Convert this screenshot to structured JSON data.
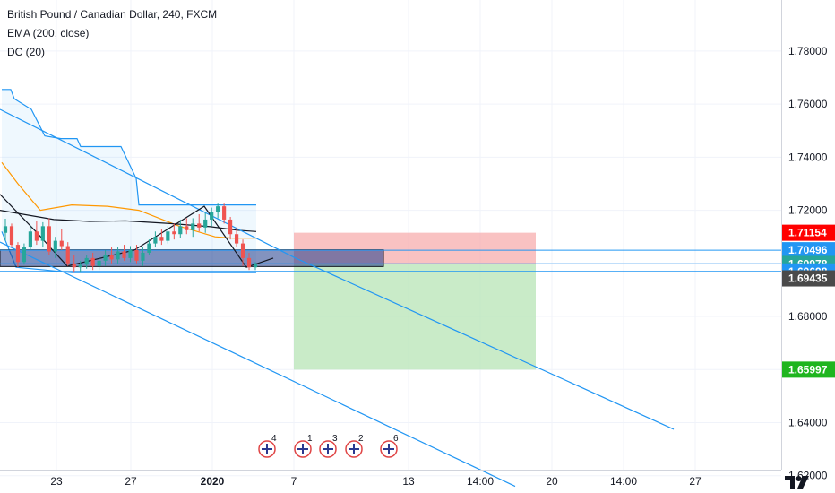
{
  "legend": {
    "title": "British Pound / Canadian Dollar, 240, FXCM",
    "ema": "EMA (200, close)",
    "dc": "DC (20)"
  },
  "colors": {
    "up": "#26a69a",
    "down": "#ef5350",
    "channel": "#2196f3",
    "ema": "#131722",
    "dc_upper": "#2196f3",
    "dc_lower": "#2196f3",
    "dc_basis": "#ff9800",
    "zone": "#1e3a8a",
    "stop_area": "#f7a8a8",
    "target_area": "#b7e4b5"
  },
  "chart_data": {
    "type": "candlestick",
    "symbol": "GBPCAD",
    "timeframe": "240",
    "ylim": [
      1.6135,
      1.7992
    ],
    "y_ticks": [
      1.62,
      1.64,
      1.66,
      1.68,
      1.7,
      1.72,
      1.74,
      1.76,
      1.78
    ],
    "y_tick_labels": [
      "1.62000",
      "1.64000",
      "1.66000",
      "1.68000",
      "1.70000",
      "1.72000",
      "1.74000",
      "1.76000",
      "1.78000"
    ],
    "x_tick_labels": [
      "23",
      "27",
      "2020",
      "7",
      "13",
      "14:00",
      "20",
      "14:00",
      "27"
    ],
    "price_badges": [
      {
        "label": "1.71154",
        "value": 1.71154,
        "color": "#ff0000"
      },
      {
        "label": "1.70496",
        "value": 1.70496,
        "color": "#2196f3"
      },
      {
        "label": "1.69986",
        "value": 1.69986,
        "color": "#2196f3"
      },
      {
        "label": "1.69978",
        "value": 1.69978,
        "color": "#26a69a"
      },
      {
        "label": "1.69698",
        "value": 1.69698,
        "color": "#2196f3"
      },
      {
        "label": "1.69435",
        "value": 1.69435,
        "color": "#4a4a4a"
      },
      {
        "label": "1.65997",
        "value": 1.65997,
        "color": "#1fb51f"
      }
    ],
    "candles": [
      [
        1.7115,
        1.7168,
        1.7085,
        1.714
      ],
      [
        1.714,
        1.715,
        1.706,
        1.707
      ],
      [
        1.707,
        1.708,
        1.6985,
        1.7005
      ],
      [
        1.7005,
        1.7075,
        1.6995,
        1.706
      ],
      [
        1.706,
        1.714,
        1.705,
        1.712
      ],
      [
        1.712,
        1.716,
        1.707,
        1.7085
      ],
      [
        1.7085,
        1.7155,
        1.706,
        1.714
      ],
      [
        1.714,
        1.717,
        1.703,
        1.7045
      ],
      [
        1.7045,
        1.71,
        1.702,
        1.7085
      ],
      [
        1.7085,
        1.713,
        1.705,
        1.7065
      ],
      [
        1.7065,
        1.708,
        1.699,
        1.7
      ],
      [
        1.7,
        1.703,
        1.6965,
        1.6985
      ],
      [
        1.6985,
        1.701,
        1.6965,
        1.6995
      ],
      [
        1.6995,
        1.703,
        1.698,
        1.702
      ],
      [
        1.702,
        1.704,
        1.6975,
        1.699
      ],
      [
        1.699,
        1.7025,
        1.6975,
        1.701
      ],
      [
        1.701,
        1.705,
        1.699,
        1.703
      ],
      [
        1.703,
        1.706,
        1.7,
        1.7015
      ],
      [
        1.7015,
        1.706,
        1.7,
        1.7045
      ],
      [
        1.7045,
        1.707,
        1.701,
        1.702
      ],
      [
        1.702,
        1.7065,
        1.7005,
        1.705
      ],
      [
        1.705,
        1.707,
        1.7,
        1.701
      ],
      [
        1.701,
        1.706,
        1.699,
        1.704
      ],
      [
        1.704,
        1.709,
        1.703,
        1.7075
      ],
      [
        1.7075,
        1.712,
        1.706,
        1.71
      ],
      [
        1.71,
        1.713,
        1.707,
        1.7085
      ],
      [
        1.7085,
        1.714,
        1.7075,
        1.712
      ],
      [
        1.712,
        1.715,
        1.709,
        1.711
      ],
      [
        1.711,
        1.7165,
        1.7095,
        1.714
      ],
      [
        1.714,
        1.717,
        1.711,
        1.7125
      ],
      [
        1.7125,
        1.717,
        1.71,
        1.715
      ],
      [
        1.715,
        1.7185,
        1.712,
        1.7135
      ],
      [
        1.7135,
        1.719,
        1.7115,
        1.7165
      ],
      [
        1.7165,
        1.721,
        1.714,
        1.7195
      ],
      [
        1.7195,
        1.7225,
        1.717,
        1.7215
      ],
      [
        1.7215,
        1.7225,
        1.715,
        1.7165
      ],
      [
        1.7165,
        1.7175,
        1.709,
        1.711
      ],
      [
        1.711,
        1.7135,
        1.706,
        1.7075
      ],
      [
        1.7075,
        1.709,
        1.699,
        1.702
      ],
      [
        1.702,
        1.704,
        1.6975,
        1.6985
      ],
      [
        1.6985,
        1.7005,
        1.6975,
        1.6998
      ]
    ],
    "ema_200": [
      [
        0,
        1.72
      ],
      [
        60,
        1.7165
      ],
      [
        100,
        1.7158
      ],
      [
        140,
        1.716
      ],
      [
        190,
        1.715
      ],
      [
        235,
        1.7138
      ],
      [
        265,
        1.7125
      ],
      [
        286,
        1.712
      ]
    ],
    "dc_upper": [
      [
        2,
        1.7655
      ],
      [
        12,
        1.7655
      ],
      [
        16,
        1.762
      ],
      [
        35,
        1.758
      ],
      [
        50,
        1.748
      ],
      [
        68,
        1.747
      ],
      [
        86,
        1.747
      ],
      [
        90,
        1.744
      ],
      [
        135,
        1.744
      ],
      [
        152,
        1.732
      ],
      [
        155,
        1.722
      ],
      [
        286,
        1.722
      ]
    ],
    "dc_lower": [
      [
        2,
        1.712
      ],
      [
        18,
        1.6985
      ],
      [
        50,
        1.6975
      ],
      [
        80,
        1.6965
      ],
      [
        150,
        1.6965
      ],
      [
        200,
        1.6965
      ],
      [
        265,
        1.6965
      ],
      [
        286,
        1.6965
      ]
    ],
    "dc_basis": [
      [
        2,
        1.738
      ],
      [
        20,
        1.73
      ],
      [
        45,
        1.72
      ],
      [
        80,
        1.722
      ],
      [
        120,
        1.7215
      ],
      [
        155,
        1.72
      ],
      [
        200,
        1.714
      ],
      [
        240,
        1.71
      ],
      [
        260,
        1.7095
      ],
      [
        286,
        1.7095
      ]
    ],
    "channel_upper": [
      [
        0,
        1.758
      ],
      [
        330,
        1.702
      ],
      [
        752,
        1.6375
      ]
    ],
    "channel_lower": [
      [
        0,
        1.708
      ],
      [
        575,
        1.616
      ]
    ],
    "trend_segment": [
      [
        0,
        1.726
      ],
      [
        40,
        1.712
      ],
      [
        75,
        1.699
      ],
      [
        150,
        1.705
      ],
      [
        228,
        1.7215
      ],
      [
        275,
        1.6985
      ],
      [
        305,
        1.702
      ]
    ],
    "zone": {
      "x0": 0,
      "x1": 428,
      "top": 1.7051,
      "bottom": 1.6988
    },
    "horizontal_lines": [
      1.70496,
      1.69986,
      1.69698
    ],
    "position": {
      "x0": 328,
      "x1": 598,
      "stop": 1.71154,
      "entry": 1.69978,
      "target": 1.65997
    },
    "events": [
      "4",
      "1",
      "3",
      "2",
      "6"
    ]
  }
}
